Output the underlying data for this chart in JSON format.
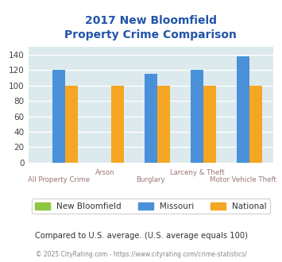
{
  "title_line1": "2017 New Bloomfield",
  "title_line2": "Property Crime Comparison",
  "categories": [
    "All Property Crime",
    "Arson",
    "Burglary",
    "Larceny & Theft",
    "Motor Vehicle Theft"
  ],
  "new_bloomfield": [
    0,
    0,
    0,
    0,
    0
  ],
  "missouri": [
    120,
    0,
    115,
    120,
    138
  ],
  "national": [
    100,
    100,
    100,
    100,
    100
  ],
  "bar_colors": {
    "new_bloomfield": "#8dc63f",
    "missouri": "#4a90d9",
    "national": "#f5a623"
  },
  "ylim": [
    0,
    150
  ],
  "yticks": [
    0,
    20,
    40,
    60,
    80,
    100,
    120,
    140
  ],
  "background_color": "#dce9ed",
  "grid_color": "#ffffff",
  "title_color": "#2255aa",
  "xlabel_color": "#997777",
  "legend_labels": [
    "New Bloomfield",
    "Missouri",
    "National"
  ],
  "legend_text_color": "#333333",
  "footnote": "Compared to U.S. average. (U.S. average equals 100)",
  "copyright": "© 2025 CityRating.com - https://www.cityrating.com/crime-statistics/",
  "footnote_color": "#333333",
  "copyright_color": "#888888"
}
